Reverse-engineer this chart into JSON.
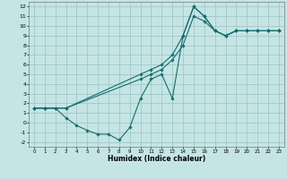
{
  "xlabel": "Humidex (Indice chaleur)",
  "xlim": [
    -0.5,
    23.5
  ],
  "ylim": [
    -2.5,
    12.5
  ],
  "xticks": [
    0,
    1,
    2,
    3,
    4,
    5,
    6,
    7,
    8,
    9,
    10,
    11,
    12,
    13,
    14,
    15,
    16,
    17,
    18,
    19,
    20,
    21,
    22,
    23
  ],
  "yticks": [
    -2,
    -1,
    0,
    1,
    2,
    3,
    4,
    5,
    6,
    7,
    8,
    9,
    10,
    11,
    12
  ],
  "bg_color": "#c5e5e5",
  "grid_color": "#a0c8c8",
  "line_color": "#1a6b6b",
  "line1_x": [
    0,
    1,
    2,
    3,
    10,
    11,
    12,
    13,
    14,
    15,
    16,
    17,
    18,
    19,
    20,
    21,
    22,
    23
  ],
  "line1_y": [
    1.5,
    1.5,
    1.5,
    1.5,
    5.0,
    5.5,
    6.0,
    7.0,
    9.0,
    12.0,
    11.0,
    9.5,
    9.0,
    9.5,
    9.5,
    9.5,
    9.5,
    9.5
  ],
  "line2_x": [
    0,
    1,
    2,
    3,
    4,
    5,
    6,
    7,
    8,
    9,
    10,
    11,
    12,
    13,
    14,
    15,
    16,
    17,
    18,
    19,
    20,
    21,
    22,
    23
  ],
  "line2_y": [
    1.5,
    1.5,
    1.5,
    0.5,
    -0.3,
    -0.8,
    -1.2,
    -1.2,
    -1.8,
    -0.5,
    2.5,
    4.5,
    5.0,
    2.5,
    9.0,
    12.0,
    11.0,
    9.5,
    9.0,
    9.5,
    9.5,
    9.5,
    9.5,
    9.5
  ],
  "line3_x": [
    0,
    1,
    2,
    3,
    10,
    11,
    12,
    13,
    14,
    15,
    16,
    17,
    18,
    19,
    20,
    21,
    22,
    23
  ],
  "line3_y": [
    1.5,
    1.5,
    1.5,
    1.5,
    4.5,
    5.0,
    5.5,
    6.5,
    8.0,
    11.0,
    10.5,
    9.5,
    9.0,
    9.5,
    9.5,
    9.5,
    9.5,
    9.5
  ]
}
